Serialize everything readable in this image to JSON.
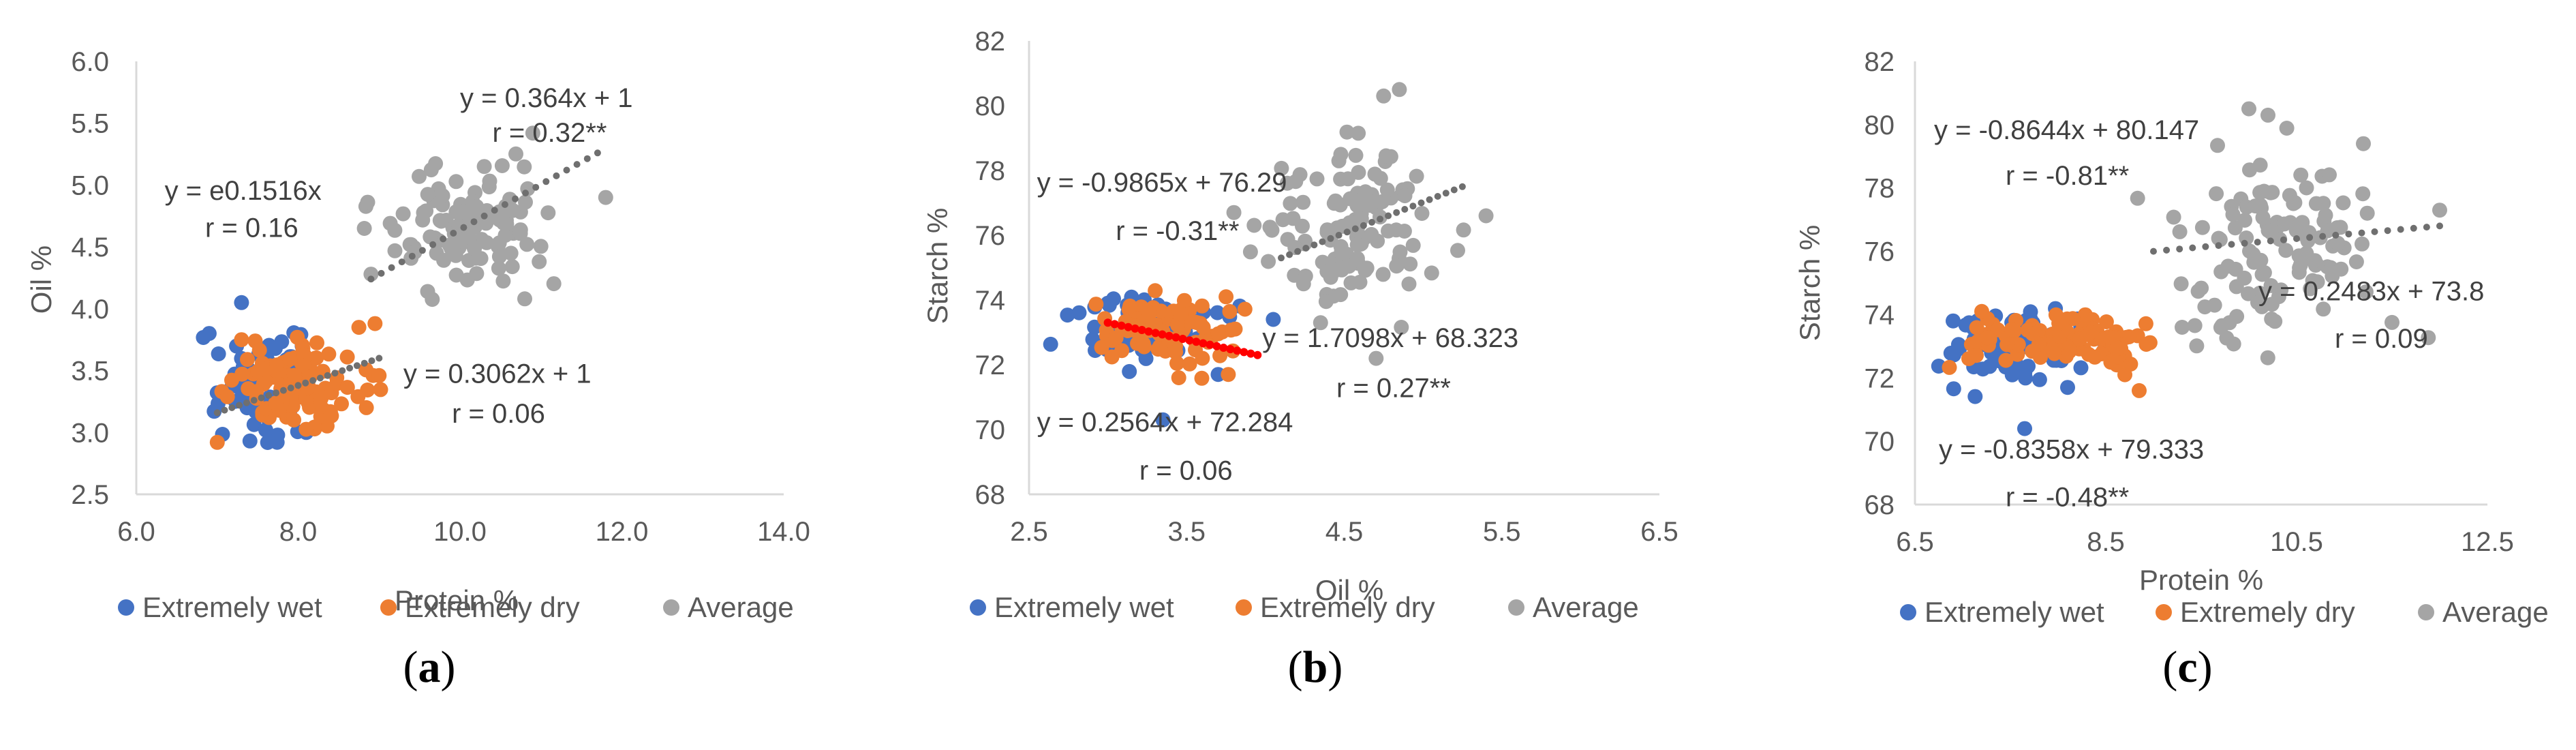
{
  "chart_data": [
    {
      "panel": "a",
      "type": "scatter",
      "panel_label": "a",
      "xlabel": "Protein %",
      "ylabel": "Oil %",
      "xlim": [
        6.0,
        14.0
      ],
      "ylim": [
        2.5,
        6.0
      ],
      "xticks": [
        "6.0",
        "8.0",
        "10.0",
        "12.0",
        "14.0"
      ],
      "yticks": [
        "2.5",
        "3.0",
        "3.5",
        "4.0",
        "4.5",
        "5.0",
        "5.5",
        "6.0"
      ],
      "legend": [
        "Extremely wet",
        "Extremely dry",
        "Average"
      ],
      "annotations": [
        {
          "text": "y = 0.364x + 1",
          "x": 10.0,
          "y": 5.63
        },
        {
          "text": "r = 0.32**",
          "x": 10.4,
          "y": 5.35
        },
        {
          "text": "y = e0.1516x",
          "x": 6.35,
          "y": 4.88
        },
        {
          "text": "r = 0.16",
          "x": 6.85,
          "y": 4.58
        },
        {
          "text": "y = 0.3062x + 1",
          "x": 9.3,
          "y": 3.4
        },
        {
          "text": "r = 0.06",
          "x": 9.9,
          "y": 3.08
        }
      ],
      "trendlines": [
        {
          "series": "Average",
          "x": [
            8.9,
            11.7
          ],
          "y": [
            4.24,
            5.26
          ]
        },
        {
          "series": "Extremely dry",
          "x": [
            7.0,
            9.0
          ],
          "y": [
            3.16,
            3.6
          ]
        }
      ],
      "series": [
        {
          "name": "Extremely wet",
          "color": "#4472C4",
          "cx": 7.5,
          "cy": 3.38,
          "sx": 0.3,
          "sy": 0.2,
          "n": 70,
          "extra": [
            [
              7.3,
              4.05
            ],
            [
              6.9,
              3.8
            ],
            [
              7.6,
              3.02
            ],
            [
              8.1,
              3.0
            ],
            [
              8.05,
              3.7
            ]
          ]
        },
        {
          "name": "Extremely dry",
          "color": "#ED7D31",
          "cx": 8.0,
          "cy": 3.38,
          "sx": 0.45,
          "sy": 0.16,
          "n": 95,
          "extra": [
            [
              7.0,
              2.92
            ],
            [
              8.75,
              3.85
            ],
            [
              9.0,
              3.46
            ],
            [
              8.95,
              3.88
            ],
            [
              7.3,
              3.75
            ]
          ]
        },
        {
          "name": "Average",
          "color": "#A5A5A5",
          "cx": 10.1,
          "cy": 4.65,
          "sx": 0.5,
          "sy": 0.22,
          "n": 110,
          "extra": [
            [
              11.8,
              4.9
            ],
            [
              10.9,
              5.42
            ],
            [
              10.3,
              5.15
            ],
            [
              8.9,
              4.28
            ],
            [
              9.6,
              4.14
            ],
            [
              10.8,
              4.08
            ]
          ]
        }
      ]
    },
    {
      "panel": "b",
      "type": "scatter",
      "panel_label": "b",
      "xlabel": "Oil %",
      "ylabel": "Starch %",
      "xlim": [
        2.5,
        6.5
      ],
      "ylim": [
        68,
        82
      ],
      "xticks": [
        "2.5",
        "3.5",
        "4.5",
        "5.5",
        "6.5"
      ],
      "yticks": [
        "68",
        "70",
        "72",
        "74",
        "76",
        "78",
        "80",
        "82"
      ],
      "legend": [
        "Extremely wet",
        "Extremely dry",
        "Average"
      ],
      "annotations": [
        {
          "text": "y = -0.9865x + 76.29",
          "x": 2.55,
          "y": 77.35
        },
        {
          "text": "r = -0.31**",
          "x": 3.05,
          "y": 75.85
        },
        {
          "text": "y = 1.7098x + 68.323",
          "x": 3.98,
          "y": 72.55
        },
        {
          "text": "r = 0.27**",
          "x": 4.45,
          "y": 71.0
        },
        {
          "text": "y = 0.2564x + 72.284",
          "x": 2.55,
          "y": 69.95
        },
        {
          "text": "r = 0.06",
          "x": 3.2,
          "y": 68.45
        }
      ],
      "trendlines": [
        {
          "series": "Extremely dry",
          "x": [
            3.0,
            3.95
          ],
          "y": [
            73.3,
            72.3
          ]
        },
        {
          "series": "Average",
          "x": [
            4.1,
            5.25
          ],
          "y": [
            75.3,
            77.5
          ]
        }
      ],
      "series": [
        {
          "name": "Extremely wet",
          "color": "#4472C4",
          "cx": 3.25,
          "cy": 73.0,
          "sx": 0.2,
          "sy": 0.5,
          "n": 70,
          "extra": [
            [
              3.35,
              70.3
            ],
            [
              4.05,
              73.4
            ],
            [
              3.0,
              73.9
            ],
            [
              3.7,
              71.7
            ]
          ]
        },
        {
          "name": "Extremely dry",
          "color": "#ED7D31",
          "cx": 3.4,
          "cy": 73.1,
          "sx": 0.2,
          "sy": 0.5,
          "n": 90,
          "extra": [
            [
              3.45,
              71.6
            ],
            [
              3.75,
              74.1
            ],
            [
              3.6,
              72.2
            ]
          ]
        },
        {
          "name": "Average",
          "color": "#A5A5A5",
          "cx": 4.6,
          "cy": 76.2,
          "sx": 0.3,
          "sy": 1.3,
          "n": 120,
          "extra": [
            [
              4.75,
              80.3
            ],
            [
              4.85,
              80.5
            ],
            [
              5.4,
              76.6
            ],
            [
              3.8,
              76.7
            ],
            [
              4.35,
              73.3
            ]
          ]
        }
      ]
    },
    {
      "panel": "c",
      "type": "scatter",
      "panel_label": "c",
      "xlabel": "Protein %",
      "ylabel": "Starch %",
      "xlim": [
        6.5,
        12.5
      ],
      "ylim": [
        68,
        82
      ],
      "xticks": [
        "6.5",
        "8.5",
        "10.5",
        "12.5"
      ],
      "yticks": [
        "68",
        "70",
        "72",
        "74",
        "76",
        "78",
        "80",
        "82"
      ],
      "legend": [
        "Extremely wet",
        "Extremely dry",
        "Average"
      ],
      "annotations": [
        {
          "text": "y = -0.8644x + 80.147",
          "x": 6.7,
          "y": 79.55
        },
        {
          "text": "r = -0.81**",
          "x": 7.45,
          "y": 78.1
        },
        {
          "text": "y = 0.2483x + 73.8",
          "x": 10.1,
          "y": 74.45
        },
        {
          "text": "r = 0.09",
          "x": 10.9,
          "y": 72.95
        },
        {
          "text": "y = -0.8358x + 79.333",
          "x": 6.75,
          "y": 69.45
        },
        {
          "text": "r = -0.48**",
          "x": 7.45,
          "y": 67.95
        }
      ],
      "trendlines": [
        {
          "series": "Average",
          "x": [
            9.0,
            12.0
          ],
          "y": [
            76.0,
            76.8
          ]
        }
      ],
      "series": [
        {
          "name": "Extremely wet",
          "color": "#4472C4",
          "cx": 7.55,
          "cy": 73.0,
          "sx": 0.35,
          "sy": 0.6,
          "n": 70,
          "extra": [
            [
              7.65,
              70.4
            ],
            [
              6.9,
              73.8
            ],
            [
              8.1,
              71.7
            ]
          ]
        },
        {
          "name": "Extremely dry",
          "color": "#ED7D31",
          "cx": 8.0,
          "cy": 73.2,
          "sx": 0.5,
          "sy": 0.45,
          "n": 100,
          "extra": [
            [
              8.85,
              71.6
            ],
            [
              7.2,
              74.1
            ],
            [
              8.7,
              72.1
            ]
          ]
        },
        {
          "name": "Average",
          "color": "#A5A5A5",
          "cx": 10.3,
          "cy": 76.2,
          "sx": 0.5,
          "sy": 1.4,
          "n": 120,
          "extra": [
            [
              10.0,
              80.5
            ],
            [
              10.2,
              80.3
            ],
            [
              11.2,
              79.4
            ],
            [
              9.3,
              73.6
            ],
            [
              12.0,
              77.3
            ]
          ]
        }
      ]
    }
  ]
}
